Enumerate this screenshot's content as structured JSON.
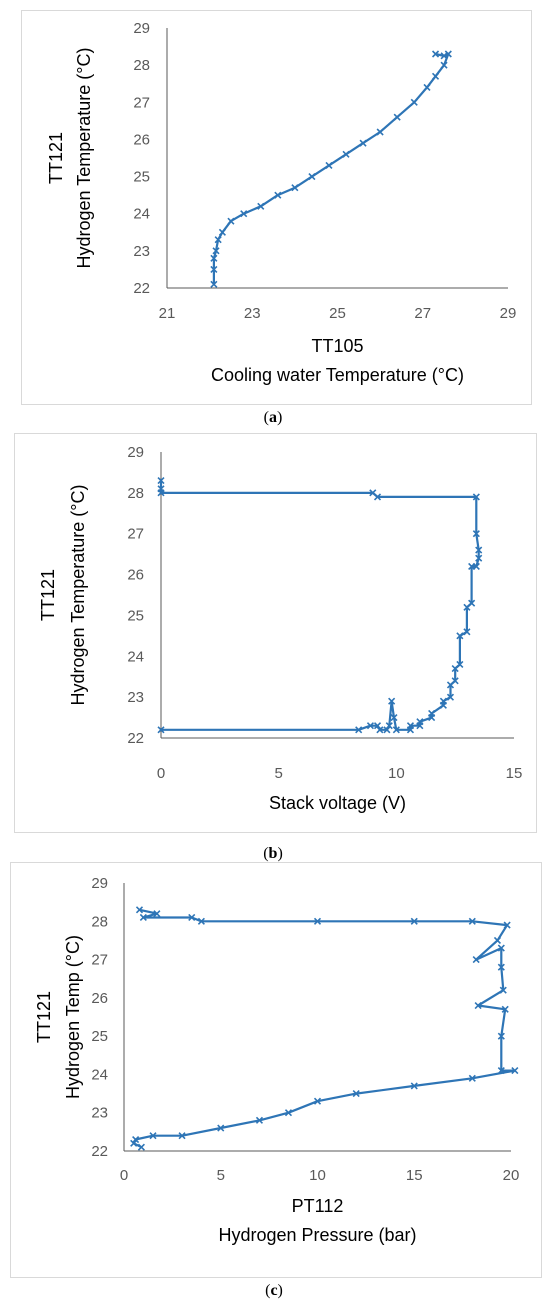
{
  "captions": [
    "a",
    "b",
    "c"
  ],
  "chart_data": [
    {
      "type": "line",
      "series_color": "#2e75b6",
      "xlim": [
        21,
        29
      ],
      "ylim": [
        22,
        29
      ],
      "x_ticks": [
        21,
        23,
        25,
        27,
        29
      ],
      "y_ticks": [
        22,
        23,
        24,
        25,
        26,
        27,
        28,
        29
      ],
      "xlabel_line1": "TT105",
      "xlabel_line2": "Cooling water Temperature  (°C)",
      "ylabel_line1": "TT121",
      "ylabel_line2": "Hydrogen Temperature (°C)",
      "grid": false,
      "series": [
        {
          "x": [
            22.1,
            22.1,
            22.1,
            22.15,
            22.2,
            22.3,
            22.5,
            22.8,
            23.2,
            23.6,
            24.0,
            24.4,
            24.8,
            25.2,
            25.6,
            26.0,
            26.4,
            26.8,
            27.1,
            27.3,
            27.5,
            27.6,
            27.5,
            27.3
          ],
          "y": [
            22.1,
            22.5,
            22.8,
            23.0,
            23.3,
            23.5,
            23.8,
            24.0,
            24.2,
            24.5,
            24.7,
            25.0,
            25.3,
            25.6,
            25.9,
            26.2,
            26.6,
            27.0,
            27.4,
            27.7,
            28.0,
            28.3,
            28.25,
            28.3
          ]
        }
      ]
    },
    {
      "type": "line",
      "series_color": "#2e75b6",
      "xlim": [
        0,
        15
      ],
      "ylim": [
        22,
        29
      ],
      "x_ticks": [
        0,
        5,
        10,
        15
      ],
      "y_ticks": [
        22,
        23,
        24,
        25,
        26,
        27,
        28,
        29
      ],
      "xlabel_line1": "Stack voltage (V)",
      "xlabel_line2": "",
      "ylabel_line1": "TT121",
      "ylabel_line2": "Hydrogen Temperature (°C)",
      "grid": false,
      "series": [
        {
          "x": [
            0,
            0,
            0,
            9.0,
            9.2,
            13.4,
            13.4,
            13.5,
            13.5,
            13.4,
            13.2,
            13.2,
            13.0,
            13.0,
            12.7,
            12.7,
            12.5,
            12.5,
            12.3,
            12.3,
            12.0,
            12.0,
            11.5,
            11.5,
            11.0,
            11.0,
            10.6,
            10.6,
            10.0,
            9.9,
            9.8,
            9.7,
            9.6,
            9.3,
            9.2,
            8.9,
            8.4,
            0
          ],
          "y": [
            28.3,
            28.1,
            28.0,
            28.0,
            27.9,
            27.9,
            27.0,
            26.6,
            26.4,
            26.2,
            26.2,
            25.3,
            25.2,
            24.6,
            24.5,
            23.8,
            23.7,
            23.4,
            23.3,
            23.0,
            22.9,
            22.8,
            22.6,
            22.5,
            22.4,
            22.3,
            22.3,
            22.2,
            22.2,
            22.5,
            22.9,
            22.3,
            22.2,
            22.2,
            22.3,
            22.3,
            22.2,
            22.2
          ]
        }
      ]
    },
    {
      "type": "line",
      "series_color": "#2e75b6",
      "xlim": [
        0,
        20
      ],
      "ylim": [
        22,
        29
      ],
      "x_ticks": [
        0,
        5,
        10,
        15,
        20
      ],
      "y_ticks": [
        22,
        23,
        24,
        25,
        26,
        27,
        28,
        29
      ],
      "xlabel_line1": "PT112",
      "xlabel_line2": "Hydrogen Pressure (bar)",
      "ylabel_line1": "TT121",
      "ylabel_line2": "Hydrogen Temp (°C)",
      "grid": false,
      "series": [
        {
          "x": [
            0.8,
            1.7,
            1.0,
            3.5,
            4.0,
            10.0,
            15.0,
            18.0,
            19.8,
            19.3,
            18.2,
            19.5,
            19.5,
            19.6,
            18.3,
            19.7,
            19.5,
            19.5,
            20.2,
            18.0,
            15.0,
            12.0,
            10.0,
            8.5,
            7.0,
            5.0,
            3.0,
            1.5,
            0.6,
            0.5,
            0.9
          ],
          "y": [
            28.3,
            28.2,
            28.1,
            28.1,
            28.0,
            28.0,
            28.0,
            28.0,
            27.9,
            27.5,
            27.0,
            27.3,
            26.8,
            26.2,
            25.8,
            25.7,
            25.0,
            24.1,
            24.1,
            23.9,
            23.7,
            23.5,
            23.3,
            23.0,
            22.8,
            22.6,
            22.4,
            22.4,
            22.3,
            22.2,
            22.1
          ]
        }
      ]
    }
  ]
}
